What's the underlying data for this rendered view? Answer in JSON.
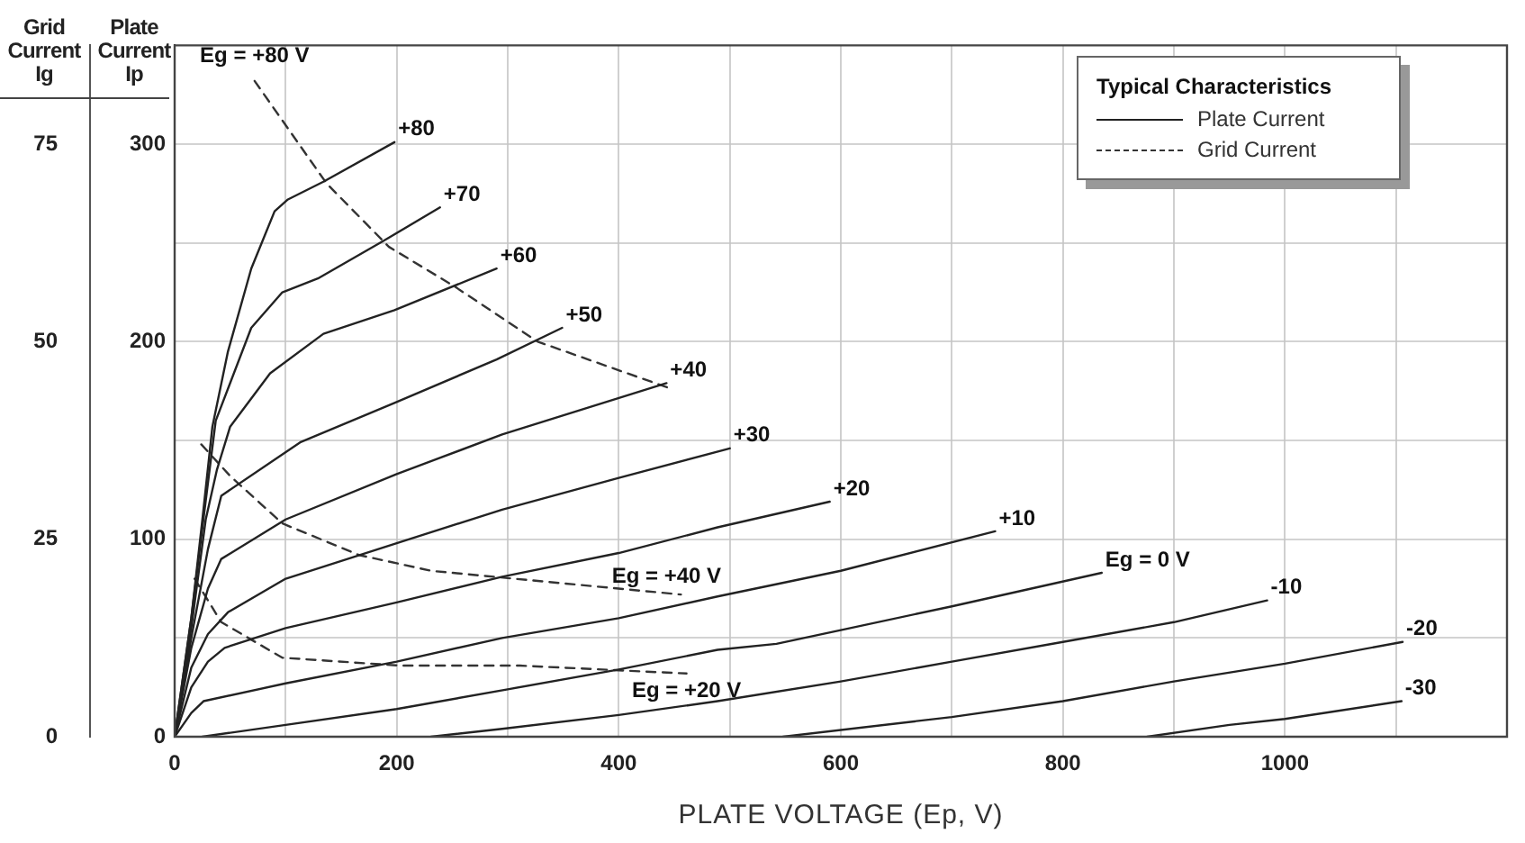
{
  "chart_data": {
    "type": "line",
    "xlabel": "PLATE VOLTAGE (Ep, V)",
    "ylabel": "Plate Current Ip",
    "y2label": "Grid Current Ig",
    "legend_title": "Typical Characteristics",
    "legend": "top right",
    "annotations": [
      "Plate Current",
      "Grid Current"
    ],
    "xlim": [
      0,
      1200
    ],
    "xticks": [
      0,
      {
        "value": 100,
        "label": null
      },
      200,
      {
        "value": 300,
        "label": null
      },
      400,
      {
        "value": 500,
        "label": null
      },
      600,
      {
        "value": 700,
        "label": null
      },
      800,
      {
        "value": 900,
        "label": null
      },
      1000,
      {
        "value": 1100,
        "label": null
      }
    ],
    "ylim": [
      0,
      350
    ],
    "yticks": [
      0,
      {
        "value": 50,
        "label": null
      },
      100,
      {
        "value": 150,
        "label": null
      },
      200,
      {
        "value": 250,
        "label": null
      },
      300
    ],
    "y2lim": [
      0,
      87.5
    ],
    "y2ticks": [
      0,
      25,
      50,
      75
    ],
    "grid": true,
    "marker": "none",
    "line_style": "solid",
    "series": [
      {
        "name": "+80",
        "color": "#222222",
        "x": [
          0,
          15,
          25,
          34,
          48,
          69,
          90,
          102,
          134,
          198
        ],
        "values": [
          0,
          60,
          110,
          157,
          195,
          237,
          266,
          272,
          281,
          301
        ]
      },
      {
        "name": "+70",
        "color": "#222222",
        "x": [
          0,
          15,
          27,
          37,
          69,
          97,
          129,
          188,
          239
        ],
        "values": [
          0,
          60,
          115,
          160,
          207,
          225,
          232,
          251,
          268
        ]
      },
      {
        "name": "+60",
        "color": "#222222",
        "x": [
          0,
          15,
          28,
          38,
          50,
          86,
          134,
          198,
          290
        ],
        "values": [
          0,
          55,
          110,
          135,
          157,
          184,
          204,
          216,
          237
        ]
      },
      {
        "name": "+50",
        "color": "#222222",
        "x": [
          0,
          15,
          30,
          42,
          113,
          198,
          290,
          349
        ],
        "values": [
          0,
          50,
          95,
          122,
          149,
          169,
          191,
          207
        ]
      },
      {
        "name": "+40",
        "color": "#222222",
        "x": [
          0,
          15,
          30,
          42,
          100,
          200,
          295,
          443
        ],
        "values": [
          0,
          45,
          75,
          90,
          110,
          133,
          153,
          179
        ]
      },
      {
        "name": "+30",
        "color": "#222222",
        "x": [
          0,
          15,
          30,
          48,
          100,
          200,
          295,
          400,
          500
        ],
        "values": [
          0,
          35,
          52,
          63,
          80,
          98,
          115,
          131,
          146
        ]
      },
      {
        "name": "+20",
        "color": "#222222",
        "x": [
          0,
          15,
          30,
          45,
          100,
          200,
          295,
          400,
          489,
          590
        ],
        "values": [
          0,
          25,
          38,
          45,
          55,
          68,
          81,
          93,
          106,
          119
        ]
      },
      {
        "name": "+10",
        "color": "#222222",
        "x": [
          0,
          15,
          26,
          100,
          200,
          295,
          400,
          489,
          600,
          739
        ],
        "values": [
          0,
          12,
          18,
          27,
          38,
          50,
          60,
          71,
          84,
          104
        ]
      },
      {
        "name": "Eg = 0 V",
        "color": "#222222",
        "x": [
          25,
          100,
          200,
          300,
          400,
          489,
          542,
          600,
          700,
          835
        ],
        "values": [
          0,
          6,
          14,
          24,
          34,
          44,
          47,
          54,
          66,
          83
        ]
      },
      {
        "name": "-10",
        "color": "#222222",
        "x": [
          231,
          295,
          400,
          489,
          600,
          700,
          800,
          900,
          984
        ],
        "values": [
          0,
          4,
          11,
          18,
          28,
          38,
          48,
          58,
          69
        ]
      },
      {
        "name": "-20",
        "color": "#222222",
        "x": [
          548,
          700,
          800,
          900,
          1000,
          1106
        ],
        "values": [
          0,
          10,
          18,
          28,
          37,
          48
        ]
      },
      {
        "name": "-30",
        "color": "#222222",
        "x": [
          876,
          950,
          1000,
          1105
        ],
        "values": [
          0,
          6,
          9,
          18
        ]
      },
      {
        "name": "Eg = +80 V",
        "color": "#333333",
        "axis": "y2",
        "line_style": "dashed",
        "x": [
          72,
          137,
          193,
          252,
          327,
          448
        ],
        "values": [
          83,
          70,
          62,
          57,
          50,
          44
        ]
      },
      {
        "name": "Eg = +40 V",
        "color": "#333333",
        "axis": "y2",
        "line_style": "dashed",
        "x": [
          24,
          50,
          97,
          166,
          231,
          306,
          456
        ],
        "values": [
          37,
          33,
          27,
          23,
          21,
          20,
          18
        ]
      },
      {
        "name": "Eg = +20 V",
        "color": "#333333",
        "axis": "y2",
        "line_style": "dashed",
        "x": [
          18,
          42,
          97,
          203,
          311,
          461
        ],
        "values": [
          20,
          14.5,
          10,
          9,
          9,
          8
        ]
      }
    ]
  }
}
